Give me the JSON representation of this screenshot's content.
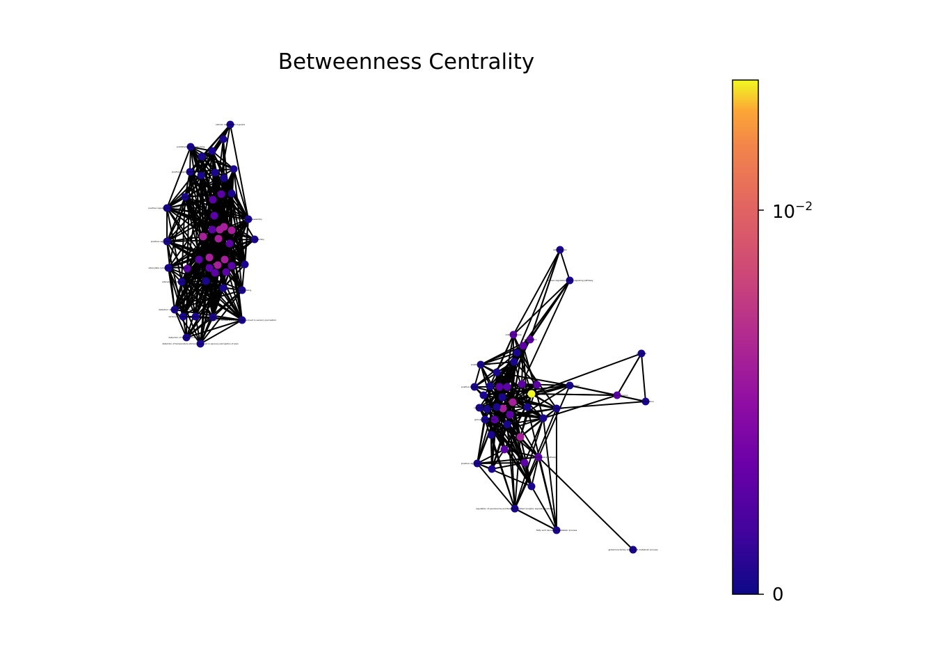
{
  "title": "Betweenness Centrality",
  "colorbar": {
    "colormap": "plasma",
    "scale": "symlog",
    "ticks": [
      {
        "label": "0",
        "value": 0
      },
      {
        "label_base": "10",
        "label_exp": "−2",
        "value": 0.01
      }
    ],
    "range": [
      0,
      0.026
    ]
  },
  "colors": {
    "edge": "#000000",
    "node_low": "#1a068d",
    "node_mid": "#8b0aa5",
    "node_high": "#f0f921"
  },
  "graph": {
    "clusters": [
      {
        "id": "left",
        "labels": [
          "cellular response to hypoxia",
          "endothelial tube branching",
          "positive regulation of angiogenesis",
          "dopamine transport",
          "positive regulation of cell migration",
          "protein complex assembly",
          "positive regulation of secretion",
          "receptor assembly",
          "adenylate cyclase-activating pathway",
          "adenylate cyclase-inhibiting pathway",
          "positive signaling",
          "detection of chemical stimulus",
          "sensory perception of smell",
          "sensory perception",
          "detection of temperature stimulus",
          "detection of temperature stimulus involved in sensory perception of pain",
          "detection of temperature stimulus involved in sensory perception"
        ]
      },
      {
        "id": "right",
        "labels": [
          "cell migration",
          "positive regulation of Wnt signaling pathway",
          "positive regulation",
          "positive regulation of cell",
          "cellular process",
          "cell adhesion",
          "regulation",
          "glucose metabolism",
          "positive regulation of secretion",
          "ion transport",
          "signal transduction",
          "response to stimulus",
          "cell death",
          "phosphorylation",
          "nervous system signaling pathway",
          "regulation of peroxisome proliferator activated receptor signaling pathway",
          "fatty acid derivative metabolic process",
          "glutamine family amino acid metabolic process"
        ]
      }
    ]
  }
}
